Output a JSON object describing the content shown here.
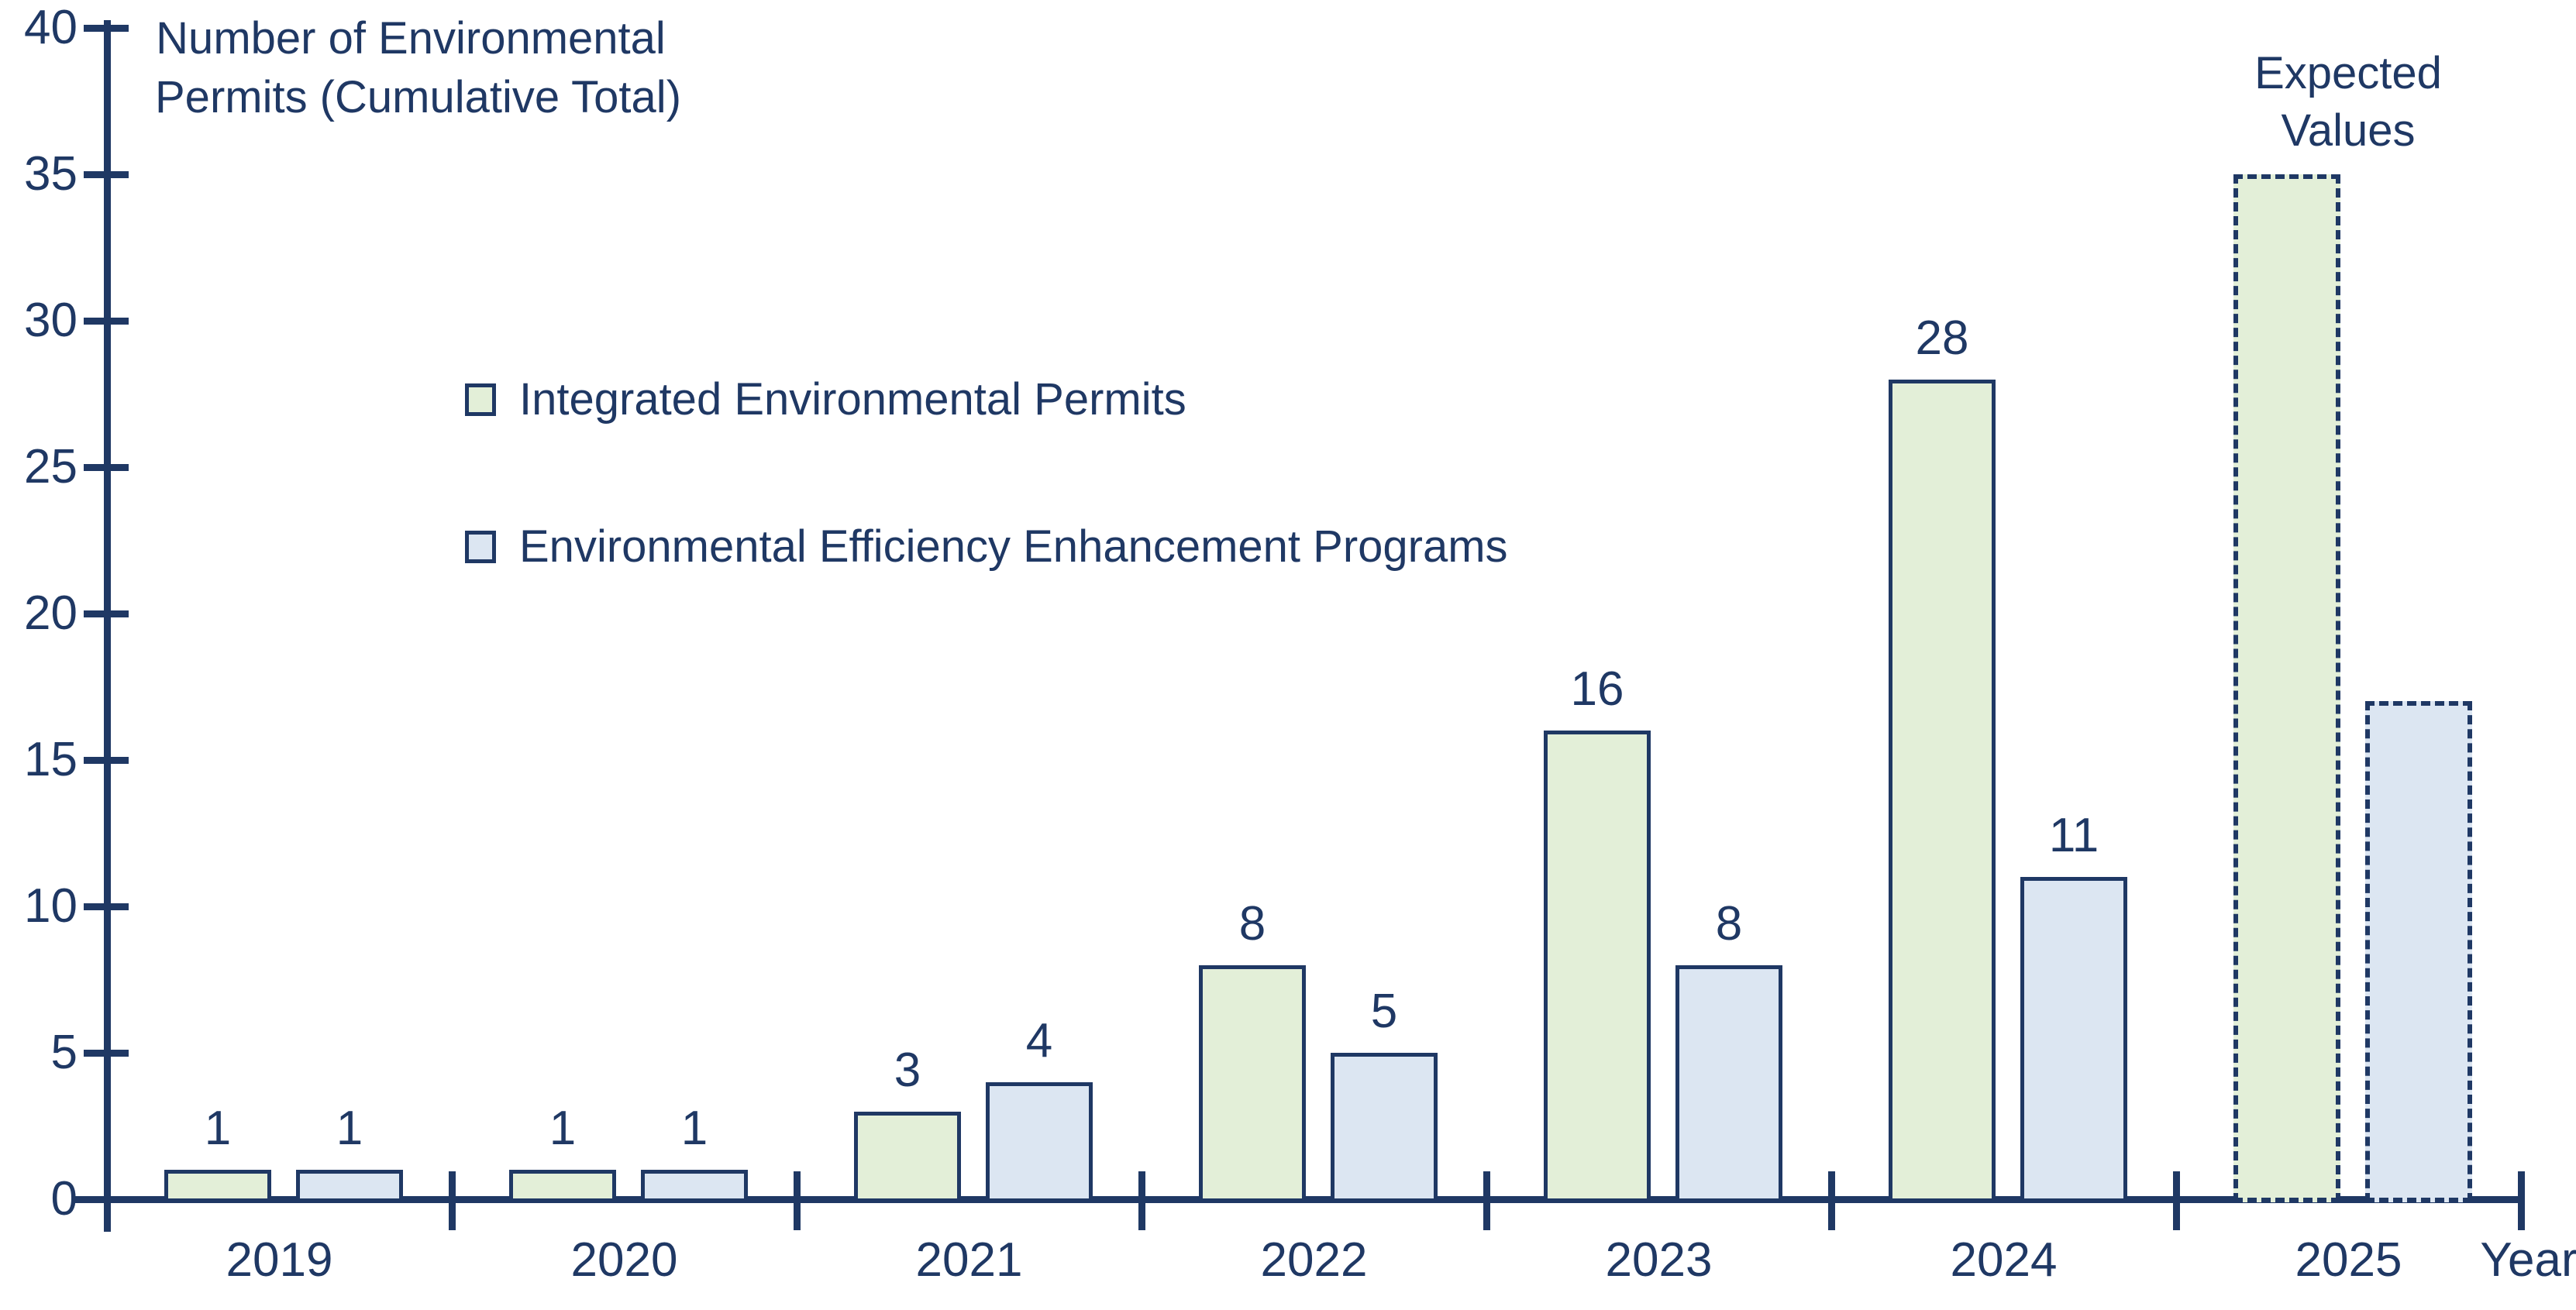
{
  "chart_data": {
    "type": "bar",
    "title": "Number of Environmental Permits (Cumulative Total)",
    "title_lines": [
      "Number of Environmental",
      "Permits (Cumulative Total)"
    ],
    "xlabel": "Year",
    "categories": [
      "2019",
      "2020",
      "2021",
      "2022",
      "2023",
      "2024",
      "2025"
    ],
    "series": [
      {
        "name": "Integrated Environmental Permits",
        "color": "#E3EFD8",
        "values": [
          1,
          1,
          3,
          8,
          16,
          28,
          35
        ]
      },
      {
        "name": "Environmental Efficiency Enhancement Programs",
        "color": "#DCE6F2",
        "values": [
          1,
          1,
          4,
          5,
          8,
          11,
          17
        ]
      }
    ],
    "expected_categories": [
      "2025"
    ],
    "expected_label_lines": [
      "Expected",
      "Values"
    ],
    "value_labels_shown_for": [
      "2019",
      "2020",
      "2021",
      "2022",
      "2023",
      "2024"
    ],
    "ylim": [
      0,
      40
    ],
    "yticks": [
      0,
      5,
      10,
      15,
      20,
      25,
      30,
      35,
      40
    ],
    "grid": false,
    "legend_position": "upper-left-inside",
    "bar_style": "outlined",
    "expected_bar_style": "dashed-outline",
    "colors": {
      "accent_navy": "#1F3864",
      "green_fill": "#E3EFD8",
      "blue_fill": "#DCE6F2",
      "background": "#FFFFFF"
    }
  }
}
